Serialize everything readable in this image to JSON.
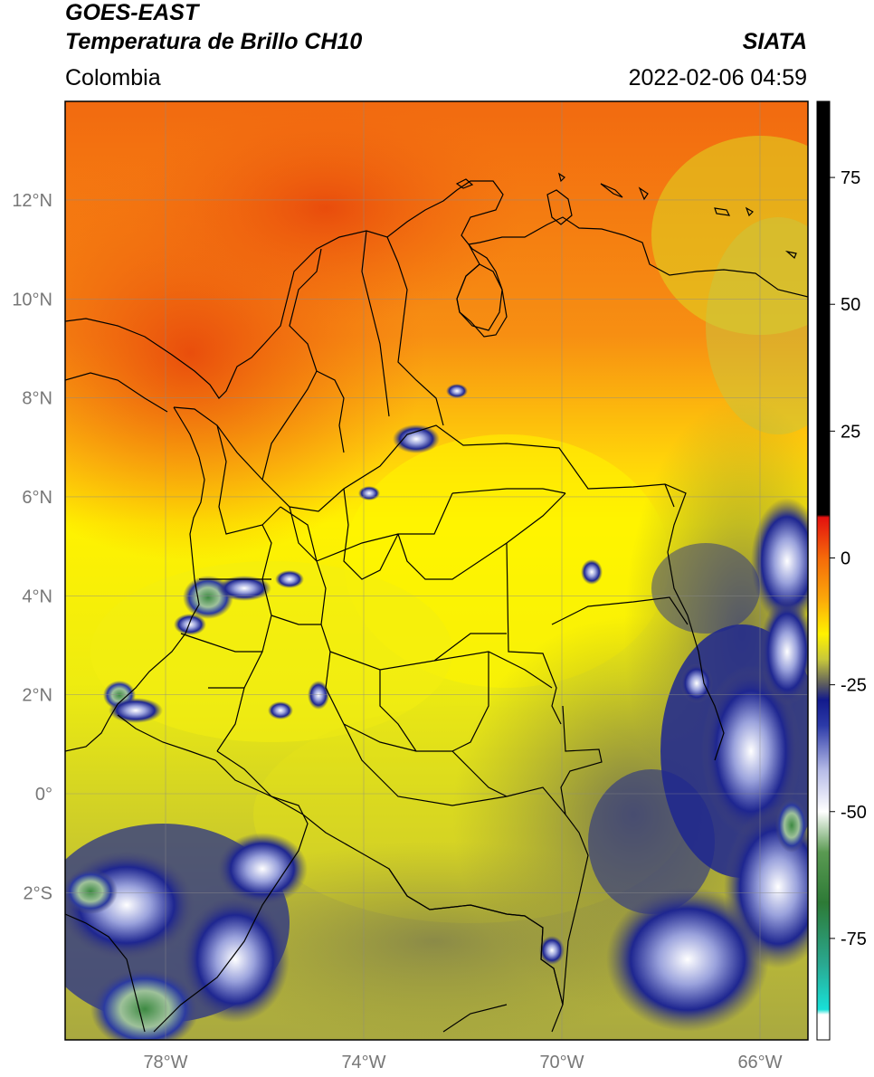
{
  "header": {
    "satellite": "GOES-EAST",
    "product": "Temperatura de Brillo CH10",
    "region": "Colombia",
    "agency": "SIATA",
    "datetime": "2022-02-06 04:59"
  },
  "map": {
    "lon_range": [
      -80,
      -65
    ],
    "lat_range": [
      -5,
      14
    ],
    "lon_ticks": [
      {
        "value": -78,
        "label": "78°W"
      },
      {
        "value": -74,
        "label": "74°W"
      },
      {
        "value": -70,
        "label": "70°W"
      },
      {
        "value": -66,
        "label": "66°W"
      }
    ],
    "lat_ticks": [
      {
        "value": 12,
        "label": "12°N"
      },
      {
        "value": 10,
        "label": "10°N"
      },
      {
        "value": 8,
        "label": "8°N"
      },
      {
        "value": 6,
        "label": "6°N"
      },
      {
        "value": 4,
        "label": "4°N"
      },
      {
        "value": 2,
        "label": "2°N"
      },
      {
        "value": 0,
        "label": "0°"
      },
      {
        "value": -2,
        "label": "2°S"
      }
    ],
    "grid": true,
    "colorbar": {
      "range": [
        -95,
        90
      ],
      "ticks": [
        75,
        50,
        25,
        0,
        -25,
        -50,
        -75
      ],
      "stops": [
        {
          "v": 90,
          "c": "#000000"
        },
        {
          "v": 8.5,
          "c": "#000000"
        },
        {
          "v": 8,
          "c": "#e3110f"
        },
        {
          "v": 0,
          "c": "#f56a0a"
        },
        {
          "v": -8,
          "c": "#fba70a"
        },
        {
          "v": -15,
          "c": "#fff200"
        },
        {
          "v": -20,
          "c": "#c8c83a"
        },
        {
          "v": -25,
          "c": "#5a5a60"
        },
        {
          "v": -28,
          "c": "#121a8c"
        },
        {
          "v": -33,
          "c": "#2c3aa8"
        },
        {
          "v": -42,
          "c": "#b8bde8"
        },
        {
          "v": -50,
          "c": "#ffffff"
        },
        {
          "v": -58,
          "c": "#5a9a52"
        },
        {
          "v": -68,
          "c": "#2d7a36"
        },
        {
          "v": -80,
          "c": "#2aa890"
        },
        {
          "v": -89,
          "c": "#18e0d8"
        },
        {
          "v": -90,
          "c": "#ffffff"
        },
        {
          "v": -95,
          "c": "#ffffff"
        }
      ]
    }
  }
}
